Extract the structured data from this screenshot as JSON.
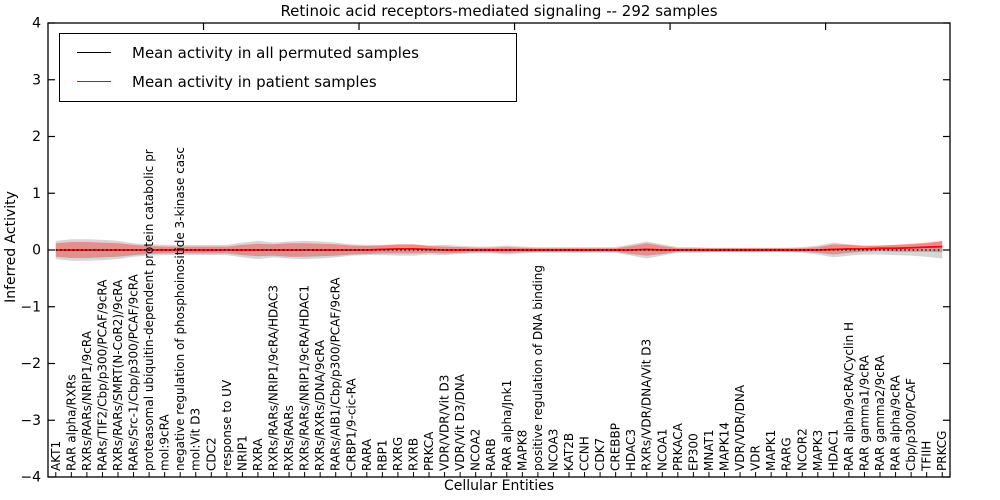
{
  "chart_data": {
    "type": "line",
    "title": "Retinoic acid receptors-mediated signaling -- 292 samples",
    "xlabel": "Cellular Entities",
    "ylabel": "Inferred Activity",
    "ylim": [
      -4,
      4
    ],
    "yticks": [
      4,
      3,
      2,
      1,
      0,
      -1,
      -2,
      -3,
      -4
    ],
    "x_major_ticks": [
      10,
      20,
      30,
      40,
      50
    ],
    "grid": false,
    "legend_position": "upper left",
    "categories": [
      "AKT1",
      "RAR alpha/RXRs",
      "RXRs/RARs/NRIP1/9cRA",
      "RARs/TIF2/Cbp/p300/PCAF/9cRA",
      "RXRs/RARs/SMRT(N-CoR2)/9cRA",
      "RARs/Src-1/Cbp/p300/PCAF/9cRA",
      "proteasomal ubiquitin-dependent protein catabolic pr",
      "mol:9cRA",
      "negative regulation of phosphoinositide 3-kinase casc",
      "mol:Vit D3",
      "CDC2",
      "response to UV",
      "NRIP1",
      "RXRA",
      "RXRs/RARs/NRIP1/9cRA/HDAC3",
      "RXRs/RARs",
      "RXRs/RARs/NRIP1/9cRA/HDAC1",
      "RXRs/RXRs/DNA/9cRA",
      "RARs/AIB1/Cbp/p300/PCAF/9cRA",
      "CRBP1/9-cic-RA",
      "RARA",
      "RBP1",
      "RXRG",
      "RXRB",
      "PRKCA",
      "VDR/VDR/Vit D3",
      "VDR/Vit D3/DNA",
      "NCOA2",
      "RARB",
      "RAR alpha/Jnk1",
      "MAPK8",
      "positive regulation of DNA binding",
      "NCOA3",
      "KAT2B",
      "CCNH",
      "CDK7",
      "CREBBP",
      "HDAC3",
      "RXRs/VDR/DNA/Vit D3",
      "NCOA1",
      "PRKACA",
      "EP300",
      "MNAT1",
      "MAPK14",
      "VDR/VDR/DNA",
      "VDR",
      "MAPK1",
      "RARG",
      "NCOR2",
      "MAPK3",
      "HDAC1",
      "RAR alpha/9cRA/Cyclin H",
      "RAR gamma1/9cRA",
      "RAR gamma2/9cRA",
      "RAR alpha/9cRA",
      "Cbp/p300/PCAF",
      "TFIIH",
      "PRKCG"
    ],
    "series": [
      {
        "name": "Mean activity in all permuted samples",
        "color": "#000000",
        "line_style": "dotted",
        "band_color": "#808080",
        "band_opacity": 0.32,
        "values": [
          0,
          0,
          0,
          0,
          0,
          0,
          0,
          0,
          0,
          0,
          0,
          0,
          0,
          0,
          0,
          0,
          0,
          0,
          0,
          0,
          0,
          0,
          0,
          0,
          0,
          0,
          0,
          0,
          0,
          0,
          0,
          0,
          0,
          0,
          0,
          0,
          0,
          0,
          0,
          0,
          0,
          0,
          0,
          0,
          0,
          0,
          0,
          0,
          0,
          0,
          0,
          0,
          0,
          0,
          0,
          0,
          0,
          0
        ],
        "band_halfwidth": [
          0.16,
          0.19,
          0.19,
          0.18,
          0.16,
          0.12,
          0.1,
          0.09,
          0.09,
          0.09,
          0.09,
          0.09,
          0.13,
          0.16,
          0.13,
          0.15,
          0.16,
          0.15,
          0.13,
          0.1,
          0.09,
          0.09,
          0.1,
          0.1,
          0.08,
          0.09,
          0.07,
          0.06,
          0.06,
          0.08,
          0.06,
          0.05,
          0.05,
          0.05,
          0.05,
          0.05,
          0.05,
          0.1,
          0.15,
          0.1,
          0.05,
          0.05,
          0.04,
          0.04,
          0.04,
          0.04,
          0.04,
          0.04,
          0.05,
          0.08,
          0.13,
          0.1,
          0.08,
          0.08,
          0.09,
          0.1,
          0.12,
          0.15
        ]
      },
      {
        "name": "Mean activity in patient samples",
        "color": "#ff0000",
        "line_style": "solid",
        "band_color": "#ff0000",
        "band_opacity": 0.33,
        "values": [
          0,
          0,
          0,
          0,
          0,
          0,
          0,
          0,
          0,
          0,
          0,
          0,
          0,
          0,
          0,
          0,
          0,
          0,
          0,
          0,
          0,
          0.01,
          0.02,
          0.02,
          0.01,
          0,
          0,
          0,
          0,
          0,
          0,
          0,
          0,
          0,
          0,
          0,
          0,
          0,
          0.01,
          0,
          0,
          0,
          0,
          0,
          0,
          0,
          0,
          0,
          0,
          0,
          0.01,
          0.02,
          0.02,
          0.03,
          0.03,
          0.04,
          0.05,
          0.06
        ],
        "band_halfwidth": [
          0.12,
          0.14,
          0.14,
          0.13,
          0.12,
          0.09,
          0.07,
          0.06,
          0.06,
          0.06,
          0.06,
          0.06,
          0.09,
          0.11,
          0.1,
          0.12,
          0.12,
          0.11,
          0.1,
          0.08,
          0.07,
          0.07,
          0.08,
          0.08,
          0.06,
          0.06,
          0.05,
          0.04,
          0.04,
          0.05,
          0.04,
          0.03,
          0.03,
          0.03,
          0.03,
          0.03,
          0.03,
          0.07,
          0.11,
          0.07,
          0.03,
          0.03,
          0.03,
          0.03,
          0.03,
          0.03,
          0.03,
          0.03,
          0.03,
          0.05,
          0.09,
          0.07,
          0.05,
          0.05,
          0.06,
          0.07,
          0.08,
          0.1
        ]
      }
    ]
  }
}
